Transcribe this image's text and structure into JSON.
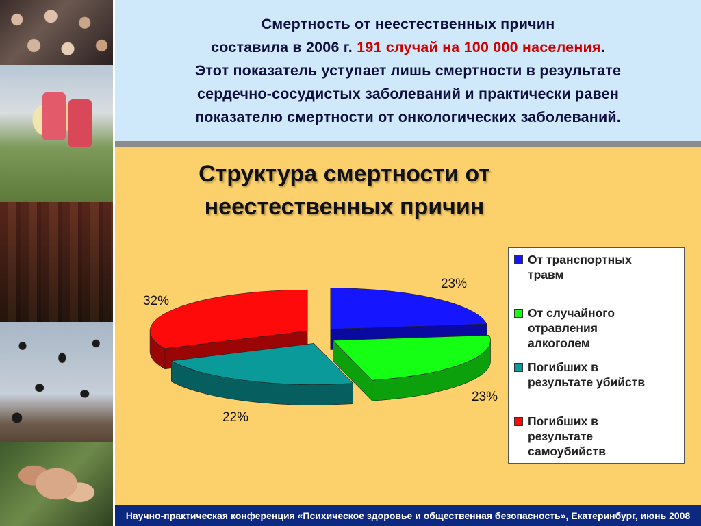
{
  "header": {
    "line1": "Смертность от неестественных причин",
    "line2_prefix": "составила в 2006 г.",
    "line2_highlight": "191 случай на 100 000 населения",
    "line2_suffix": ".",
    "line3": "Этот показатель уступает лишь смертности в результате",
    "line4": "сердечно-сосудистых заболеваний и практически равен",
    "line5": "показателю смертности от онкологических заболеваний."
  },
  "footer": {
    "text": "Научно-практическая конференция «Психическое здоровье и общественная безопасность», Екатеринбург, июнь 2008"
  },
  "colors": {
    "header_bg": "#cfe9fb",
    "panel_bg": "#fcd06a",
    "highlight": "#d00000",
    "footer_bg": "#0c2880"
  },
  "chart_data": {
    "type": "pie",
    "style": "3d-exploded",
    "title": "Структура смертности от неестественных причин",
    "title_lines": [
      "Структура смертности от",
      "неестественных причин"
    ],
    "legend_position": "right",
    "slices": [
      {
        "name": "От транспортных травм",
        "legend_lines": [
          "От транспортных",
          "травм"
        ],
        "value": 23,
        "label": "23%",
        "color": "#1515ff",
        "side": "#0a0aa0"
      },
      {
        "name": "От случайного отравления алкоголем",
        "legend_lines": [
          "От случайного",
          "отравления",
          "алкоголем"
        ],
        "value": 23,
        "label": "23%",
        "color": "#14ff14",
        "side": "#0ca00c"
      },
      {
        "name": "Погибших в результате убийств",
        "legend_lines": [
          "Погибших в",
          "результате убийств"
        ],
        "value": 22,
        "label": "22%",
        "color": "#0b9a9a",
        "side": "#075e5e"
      },
      {
        "name": "Погибших в результате самоубийств",
        "legend_lines": [
          "Погибших в",
          "результате",
          "самоубийств"
        ],
        "value": 32,
        "label": "32%",
        "color": "#ff0a0a",
        "side": "#9a0606"
      }
    ]
  }
}
